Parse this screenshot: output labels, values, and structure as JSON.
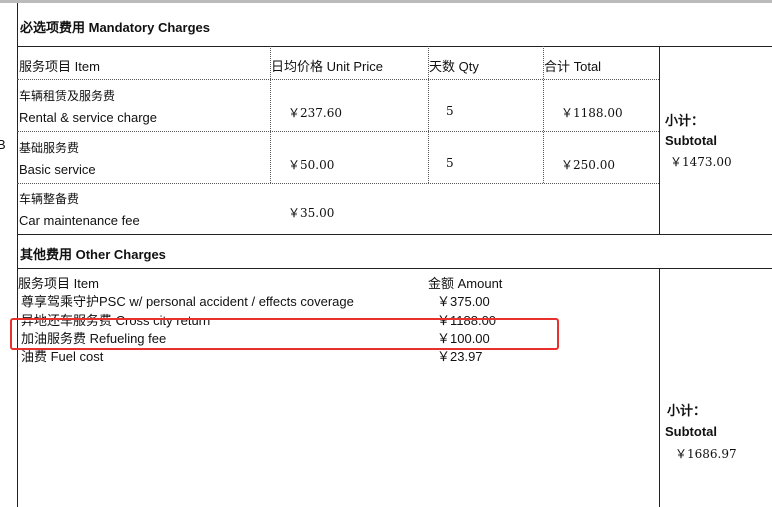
{
  "side_fragment": "B",
  "mandatory": {
    "title": "必选项费用 Mandatory Charges",
    "headers": [
      "服务项目  Item",
      "日均价格  Unit Price",
      "天数 Qty",
      "合计  Total"
    ],
    "rows": [
      {
        "cn": "车辆租赁及服务费",
        "en": "Rental & service charge",
        "price": "￥237.60",
        "qty": "5",
        "total": "￥1188.00"
      },
      {
        "cn": "基础服务费",
        "en": "Basic service",
        "price": "￥50.00",
        "qty": "5",
        "total": "￥250.00"
      },
      {
        "cn": "车辆整备费",
        "en": "Car maintenance fee",
        "price": "￥35.00",
        "qty": "",
        "total": ""
      }
    ],
    "subtotal_cn": "小计：",
    "subtotal_en": "Subtotal",
    "subtotal_value": "￥1473.00"
  },
  "other": {
    "title": "其他费用  Other Charges",
    "header_item": "服务项目  Item",
    "header_amount": "金额  Amount",
    "rows": [
      {
        "item": "尊享驾乘守护PSC w/ personal accident / effects coverage",
        "amount": "￥375.00"
      },
      {
        "item": "异地还车服务费 Cross city return",
        "amount": "￥1188.00"
      },
      {
        "item": "加油服务费 Refueling fee",
        "amount": "￥100.00",
        "highlighted": true
      },
      {
        "item": "油费 Fuel cost",
        "amount": "￥23.97"
      }
    ],
    "subtotal_cn": "小计：",
    "subtotal_en": "Subtotal",
    "subtotal_value": "￥1686.97"
  },
  "highlight_color": "#e8302c"
}
